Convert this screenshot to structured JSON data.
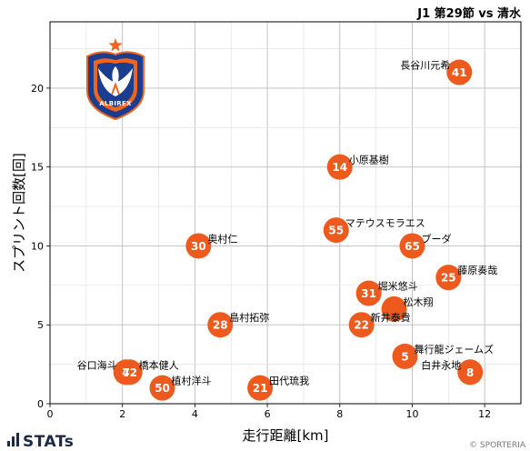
{
  "logo": {
    "icon": "albirex-emblem-icon",
    "text": "ALBIREX"
  },
  "footer": {
    "brand_icon": "bar-chart-icon",
    "brand": "STATs",
    "copyright": "© SPORTERIA"
  },
  "colors": {
    "marker": "#ee5a1e",
    "marker_text": "#ffffff",
    "grid_major": "#bdbdbd",
    "grid_minor": "#e2e2e2",
    "emblem_blue": "#1a3d8f",
    "emblem_orange": "#f0641e"
  },
  "chart_data": {
    "type": "scatter",
    "title": "J1 第29節 vs 清水",
    "xlabel": "走行距離[km]",
    "ylabel": "スプリント回数[回]",
    "xlim": [
      0,
      13
    ],
    "ylim": [
      0,
      24.2
    ],
    "xticks": [
      0,
      2,
      4,
      6,
      8,
      10,
      12
    ],
    "yticks": [
      0,
      5,
      10,
      15,
      20
    ],
    "grid": true,
    "points": [
      {
        "number": "41",
        "name": "長谷川元希",
        "x": 11.3,
        "y": 21
      },
      {
        "number": "14",
        "name": "小原基樹",
        "x": 8.0,
        "y": 15
      },
      {
        "number": "55",
        "name": "マテウスモラエス",
        "x": 7.9,
        "y": 11
      },
      {
        "number": "30",
        "name": "奥村仁",
        "x": 4.1,
        "y": 10
      },
      {
        "number": "65",
        "name": "ブーダ",
        "x": 10.0,
        "y": 10
      },
      {
        "number": "25",
        "name": "藤原奏哉",
        "x": 11.0,
        "y": 8
      },
      {
        "number": "31",
        "name": "堀米悠斗",
        "x": 8.8,
        "y": 7
      },
      {
        "number": "",
        "name": "松木翔",
        "x": 9.5,
        "y": 6
      },
      {
        "number": "22",
        "name": "新井泰貴",
        "x": 8.6,
        "y": 5
      },
      {
        "number": "28",
        "name": "島村拓弥",
        "x": 4.7,
        "y": 5
      },
      {
        "number": "5",
        "name": "舞行龍ジェームズ",
        "x": 9.8,
        "y": 3
      },
      {
        "number": "8",
        "name": "白井永地",
        "x": 11.6,
        "y": 2
      },
      {
        "number": "7",
        "name": "谷口海斗",
        "x": 2.1,
        "y": 2
      },
      {
        "number": "42",
        "name": "橋本健人",
        "x": 2.2,
        "y": 2
      },
      {
        "number": "50",
        "name": "植村洋斗",
        "x": 3.1,
        "y": 1
      },
      {
        "number": "21",
        "name": "田代琉我",
        "x": 5.8,
        "y": 1
      }
    ]
  }
}
